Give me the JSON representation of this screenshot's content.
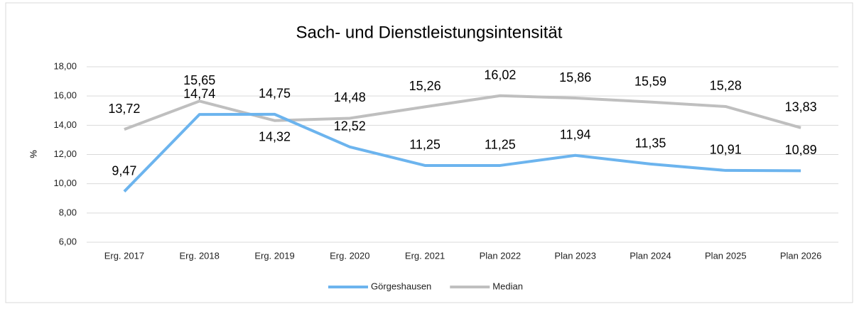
{
  "chart_data": {
    "type": "line",
    "title": "Sach- und Dienstleistungsintensität",
    "ylabel": "%",
    "categories": [
      "Erg. 2017",
      "Erg. 2018",
      "Erg. 2019",
      "Erg. 2020",
      "Erg. 2021",
      "Plan 2022",
      "Plan 2023",
      "Plan 2024",
      "Plan 2025",
      "Plan 2026"
    ],
    "series": [
      {
        "name": "Görgeshausen",
        "color": "#6cb4ee",
        "values": [
          9.47,
          14.74,
          14.75,
          12.52,
          11.25,
          11.25,
          11.94,
          11.35,
          10.91,
          10.89
        ],
        "value_labels": [
          "9,47",
          "14,74",
          "14,75",
          "12,52",
          "11,25",
          "11,25",
          "11,94",
          "11,35",
          "10,91",
          "10,89"
        ]
      },
      {
        "name": "Median",
        "color": "#bfbfbf",
        "values": [
          13.72,
          15.65,
          14.32,
          14.48,
          15.26,
          16.02,
          15.86,
          15.59,
          15.28,
          13.83
        ],
        "value_labels": [
          "13,72",
          "15,65",
          "14,32",
          "14,48",
          "15,26",
          "16,02",
          "15,86",
          "15,59",
          "15,28",
          "13,83"
        ]
      }
    ],
    "ylim": [
      6,
      18
    ],
    "yticks": [
      {
        "value": 6,
        "label": "6,00"
      },
      {
        "value": 8,
        "label": "8,00"
      },
      {
        "value": 10,
        "label": "10,00"
      },
      {
        "value": 12,
        "label": "12,00"
      },
      {
        "value": 14,
        "label": "14,00"
      },
      {
        "value": 16,
        "label": "16,00"
      },
      {
        "value": 18,
        "label": "18,00"
      }
    ],
    "grid": true,
    "legend": "bottom"
  }
}
